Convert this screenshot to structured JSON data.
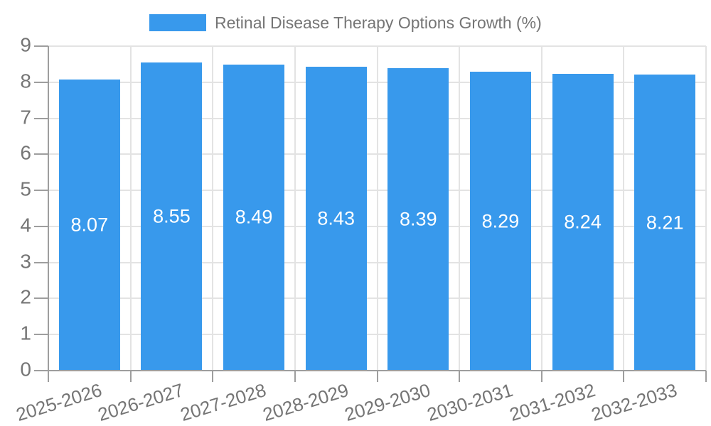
{
  "legend": {
    "label": "Retinal Disease Therapy Options Growth (%)"
  },
  "chart_data": {
    "type": "bar",
    "title": "Retinal Disease Therapy Options Growth (%)",
    "categories": [
      "2025-2026",
      "2026-2027",
      "2027-2028",
      "2028-2029",
      "2029-2030",
      "2030-2031",
      "2031-2032",
      "2032-2033"
    ],
    "values": [
      8.07,
      8.55,
      8.49,
      8.43,
      8.39,
      8.29,
      8.24,
      8.21
    ],
    "value_labels": [
      "8.07",
      "8.55",
      "8.49",
      "8.43",
      "8.39",
      "8.29",
      "8.24",
      "8.21"
    ],
    "yticks": [
      0,
      1,
      2,
      3,
      4,
      5,
      6,
      7,
      8,
      9
    ],
    "ylim": [
      0,
      9
    ],
    "xlabel": "",
    "ylabel": "",
    "legend_position": "top",
    "grid": true,
    "x_label_rotation_deg": -17,
    "colors": {
      "bar": "#3899EC",
      "value_label": "#FFFFFF",
      "axis_text": "#757575",
      "axis_line": "#9E9E9E",
      "gridline": "#E3E3E3",
      "background": "#FFFFFF"
    }
  }
}
